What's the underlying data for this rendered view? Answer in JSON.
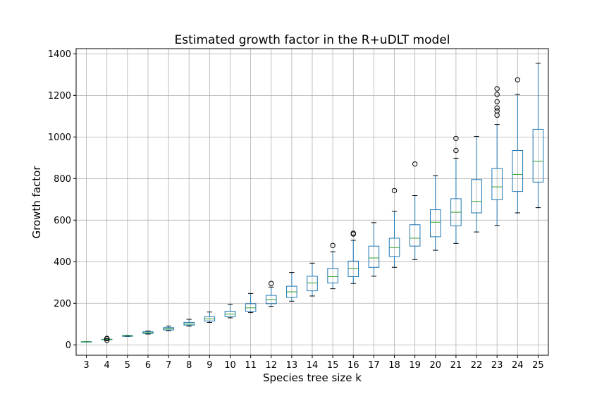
{
  "chart_data": {
    "type": "box",
    "title": "Estimated growth factor in the R+uDLT model",
    "xlabel": "Species tree size k",
    "ylabel": "Growth factor",
    "ylim": [
      -50,
      1425
    ],
    "yticks": [
      0,
      200,
      400,
      600,
      800,
      1000,
      1200,
      1400
    ],
    "grid": true,
    "colors": {
      "box": "#1f77b4",
      "median": "#2ca02c",
      "whisker": "#000000",
      "flier": "#000000",
      "grid": "#b0b0b0"
    },
    "categories": [
      "3",
      "4",
      "5",
      "6",
      "7",
      "8",
      "9",
      "10",
      "11",
      "12",
      "13",
      "14",
      "15",
      "16",
      "17",
      "18",
      "19",
      "20",
      "21",
      "22",
      "23",
      "24",
      "25"
    ],
    "boxes": [
      {
        "k": "3",
        "whislo": 15,
        "q1": 15,
        "med": 15,
        "q3": 15,
        "whishi": 15,
        "fliers": []
      },
      {
        "k": "4",
        "whislo": 24,
        "q1": 25,
        "med": 26,
        "q3": 27,
        "whishi": 28,
        "fliers": [
          22,
          30,
          31
        ]
      },
      {
        "k": "5",
        "whislo": 40,
        "q1": 41,
        "med": 43,
        "q3": 45,
        "whishi": 46,
        "fliers": []
      },
      {
        "k": "6",
        "whislo": 52,
        "q1": 55,
        "med": 58,
        "q3": 63,
        "whishi": 66,
        "fliers": []
      },
      {
        "k": "7",
        "whislo": 68,
        "q1": 72,
        "med": 78,
        "q3": 83,
        "whishi": 90,
        "fliers": []
      },
      {
        "k": "8",
        "whislo": 90,
        "q1": 95,
        "med": 100,
        "q3": 108,
        "whishi": 123,
        "fliers": []
      },
      {
        "k": "9",
        "whislo": 108,
        "q1": 115,
        "med": 125,
        "q3": 135,
        "whishi": 158,
        "fliers": []
      },
      {
        "k": "10",
        "whislo": 130,
        "q1": 135,
        "med": 148,
        "q3": 162,
        "whishi": 195,
        "fliers": []
      },
      {
        "k": "11",
        "whislo": 155,
        "q1": 162,
        "med": 178,
        "q3": 198,
        "whishi": 247,
        "fliers": []
      },
      {
        "k": "12",
        "whislo": 185,
        "q1": 198,
        "med": 218,
        "q3": 238,
        "whishi": 278,
        "fliers": [
          295
        ]
      },
      {
        "k": "13",
        "whislo": 210,
        "q1": 228,
        "med": 255,
        "q3": 282,
        "whishi": 348,
        "fliers": []
      },
      {
        "k": "14",
        "whislo": 235,
        "q1": 260,
        "med": 298,
        "q3": 330,
        "whishi": 393,
        "fliers": []
      },
      {
        "k": "15",
        "whislo": 270,
        "q1": 298,
        "med": 328,
        "q3": 368,
        "whishi": 448,
        "fliers": [
          478
        ]
      },
      {
        "k": "16",
        "whislo": 295,
        "q1": 328,
        "med": 368,
        "q3": 403,
        "whishi": 503,
        "fliers": [
          533,
          537
        ]
      },
      {
        "k": "17",
        "whislo": 330,
        "q1": 373,
        "med": 418,
        "q3": 475,
        "whishi": 588,
        "fliers": []
      },
      {
        "k": "18",
        "whislo": 373,
        "q1": 425,
        "med": 468,
        "q3": 513,
        "whishi": 643,
        "fliers": [
          742
        ]
      },
      {
        "k": "19",
        "whislo": 410,
        "q1": 475,
        "med": 513,
        "q3": 578,
        "whishi": 718,
        "fliers": [
          870
        ]
      },
      {
        "k": "20",
        "whislo": 455,
        "q1": 520,
        "med": 590,
        "q3": 650,
        "whishi": 813,
        "fliers": []
      },
      {
        "k": "21",
        "whislo": 488,
        "q1": 573,
        "med": 638,
        "q3": 703,
        "whishi": 898,
        "fliers": [
          935,
          993
        ]
      },
      {
        "k": "22",
        "whislo": 543,
        "q1": 635,
        "med": 690,
        "q3": 795,
        "whishi": 1003,
        "fliers": []
      },
      {
        "k": "23",
        "whislo": 575,
        "q1": 698,
        "med": 760,
        "q3": 848,
        "whishi": 1060,
        "fliers": [
          1105,
          1125,
          1140,
          1170,
          1205,
          1232
        ]
      },
      {
        "k": "24",
        "whislo": 635,
        "q1": 738,
        "med": 820,
        "q3": 935,
        "whishi": 1205,
        "fliers": [
          1275
        ]
      },
      {
        "k": "25",
        "whislo": 660,
        "q1": 783,
        "med": 883,
        "q3": 1037,
        "whishi": 1355,
        "fliers": []
      }
    ]
  }
}
